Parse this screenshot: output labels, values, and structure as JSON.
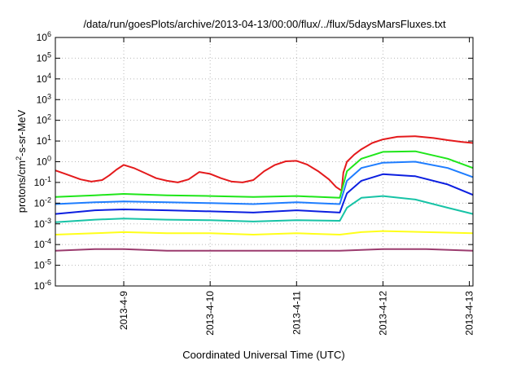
{
  "chart_data": {
    "type": "line",
    "title": "/data/run/goesPlots/archive/2013-04-13/00:00/flux/../flux/5daysMarsFluxes.txt",
    "xlabel": "Coordinated Universal Time (UTC)",
    "ylabel": {
      "prefix": "protons/cm",
      "sup": "2",
      "suffix": "-s-sr-MeV"
    },
    "yscale": "log",
    "ylim": [
      1e-06,
      1000000.0
    ],
    "xlim": [
      "2013-04-08T05:00",
      "2013-04-13T01:00"
    ],
    "grid": true,
    "y_ticks": [
      {
        "value": 1e-06,
        "base": "10",
        "exp": "-6"
      },
      {
        "value": 1e-05,
        "base": "10",
        "exp": "-5"
      },
      {
        "value": 0.0001,
        "base": "10",
        "exp": "-4"
      },
      {
        "value": 0.001,
        "base": "10",
        "exp": "-3"
      },
      {
        "value": 0.01,
        "base": "10",
        "exp": "-2"
      },
      {
        "value": 0.1,
        "base": "10",
        "exp": "-1"
      },
      {
        "value": 1.0,
        "base": "10",
        "exp": "0"
      },
      {
        "value": 10.0,
        "base": "10",
        "exp": "1"
      },
      {
        "value": 100.0,
        "base": "10",
        "exp": "2"
      },
      {
        "value": 1000.0,
        "base": "10",
        "exp": "3"
      },
      {
        "value": 10000.0,
        "base": "10",
        "exp": "4"
      },
      {
        "value": 100000.0,
        "base": "10",
        "exp": "5"
      },
      {
        "value": 1000000.0,
        "base": "10",
        "exp": "6"
      }
    ],
    "x_ticks": [
      {
        "value": "2013-04-09T00:00",
        "label": "2013-4-9"
      },
      {
        "value": "2013-04-10T00:00",
        "label": "2013-4-10"
      },
      {
        "value": "2013-04-11T00:00",
        "label": "2013-4-11"
      },
      {
        "value": "2013-04-12T00:00",
        "label": "2013-4-12"
      },
      {
        "value": "2013-04-13T00:00",
        "label": "2013-4-13"
      }
    ],
    "series": [
      {
        "color": "#e41a1c",
        "points": [
          [
            "2013-04-08T05:00",
            0.38
          ],
          [
            "2013-04-08T08:00",
            0.25
          ],
          [
            "2013-04-08T12:00",
            0.14
          ],
          [
            "2013-04-08T15:00",
            0.11
          ],
          [
            "2013-04-08T18:00",
            0.13
          ],
          [
            "2013-04-08T20:00",
            0.22
          ],
          [
            "2013-04-08T22:00",
            0.42
          ],
          [
            "2013-04-09T00:00",
            0.7
          ],
          [
            "2013-04-09T03:00",
            0.48
          ],
          [
            "2013-04-09T06:00",
            0.28
          ],
          [
            "2013-04-09T09:00",
            0.16
          ],
          [
            "2013-04-09T12:00",
            0.12
          ],
          [
            "2013-04-09T15:00",
            0.1
          ],
          [
            "2013-04-09T18:00",
            0.14
          ],
          [
            "2013-04-09T21:00",
            0.32
          ],
          [
            "2013-04-10T00:00",
            0.26
          ],
          [
            "2013-04-10T03:00",
            0.16
          ],
          [
            "2013-04-10T06:00",
            0.11
          ],
          [
            "2013-04-10T09:00",
            0.1
          ],
          [
            "2013-04-10T12:00",
            0.13
          ],
          [
            "2013-04-10T15:00",
            0.35
          ],
          [
            "2013-04-10T18:00",
            0.7
          ],
          [
            "2013-04-10T21:00",
            1.05
          ],
          [
            "2013-04-11T00:00",
            1.1
          ],
          [
            "2013-04-11T03:00",
            0.72
          ],
          [
            "2013-04-11T06:00",
            0.35
          ],
          [
            "2013-04-11T09:00",
            0.14
          ],
          [
            "2013-04-11T11:00",
            0.06
          ],
          [
            "2013-04-11T12:30",
            0.04
          ],
          [
            "2013-04-11T13:00",
            0.3
          ],
          [
            "2013-04-11T14:00",
            1.0
          ],
          [
            "2013-04-11T16:00",
            2.2
          ],
          [
            "2013-04-11T18:00",
            4.0
          ],
          [
            "2013-04-11T21:00",
            8.0
          ],
          [
            "2013-04-12T00:00",
            12.0
          ],
          [
            "2013-04-12T04:00",
            16.0
          ],
          [
            "2013-04-12T09:00",
            17.0
          ],
          [
            "2013-04-12T14:00",
            14.0
          ],
          [
            "2013-04-12T18:00",
            11.0
          ],
          [
            "2013-04-12T22:00",
            9.0
          ],
          [
            "2013-04-13T01:00",
            8.0
          ]
        ]
      },
      {
        "color": "#1fe61a",
        "points": [
          [
            "2013-04-08T05:00",
            0.02
          ],
          [
            "2013-04-08T16:00",
            0.024
          ],
          [
            "2013-04-09T00:00",
            0.028
          ],
          [
            "2013-04-09T12:00",
            0.024
          ],
          [
            "2013-04-10T00:00",
            0.022
          ],
          [
            "2013-04-10T12:00",
            0.02
          ],
          [
            "2013-04-11T00:00",
            0.022
          ],
          [
            "2013-04-11T12:00",
            0.018
          ],
          [
            "2013-04-11T14:00",
            0.35
          ],
          [
            "2013-04-11T18:00",
            1.4
          ],
          [
            "2013-04-12T00:00",
            3.0
          ],
          [
            "2013-04-12T09:00",
            3.2
          ],
          [
            "2013-04-12T18:00",
            1.4
          ],
          [
            "2013-04-13T01:00",
            0.5
          ]
        ]
      },
      {
        "color": "#1e7dff",
        "points": [
          [
            "2013-04-08T05:00",
            0.009
          ],
          [
            "2013-04-08T16:00",
            0.011
          ],
          [
            "2013-04-09T00:00",
            0.012
          ],
          [
            "2013-04-09T12:00",
            0.011
          ],
          [
            "2013-04-10T00:00",
            0.01
          ],
          [
            "2013-04-10T12:00",
            0.009
          ],
          [
            "2013-04-11T00:00",
            0.011
          ],
          [
            "2013-04-11T12:00",
            0.009
          ],
          [
            "2013-04-11T14:00",
            0.12
          ],
          [
            "2013-04-11T18:00",
            0.5
          ],
          [
            "2013-04-12T00:00",
            0.9
          ],
          [
            "2013-04-12T09:00",
            1.0
          ],
          [
            "2013-04-12T18:00",
            0.5
          ],
          [
            "2013-04-13T01:00",
            0.18
          ]
        ]
      },
      {
        "color": "#0c1fe0",
        "points": [
          [
            "2013-04-08T05:00",
            0.003
          ],
          [
            "2013-04-08T16:00",
            0.0045
          ],
          [
            "2013-04-09T00:00",
            0.005
          ],
          [
            "2013-04-09T12:00",
            0.0045
          ],
          [
            "2013-04-10T00:00",
            0.004
          ],
          [
            "2013-04-10T12:00",
            0.0035
          ],
          [
            "2013-04-11T00:00",
            0.0045
          ],
          [
            "2013-04-11T12:00",
            0.0035
          ],
          [
            "2013-04-11T14:00",
            0.03
          ],
          [
            "2013-04-11T18:00",
            0.12
          ],
          [
            "2013-04-12T00:00",
            0.25
          ],
          [
            "2013-04-12T09:00",
            0.2
          ],
          [
            "2013-04-12T18:00",
            0.08
          ],
          [
            "2013-04-13T01:00",
            0.025
          ]
        ]
      },
      {
        "color": "#17c3a6",
        "points": [
          [
            "2013-04-08T05:00",
            0.0012
          ],
          [
            "2013-04-08T16:00",
            0.0016
          ],
          [
            "2013-04-09T00:00",
            0.0018
          ],
          [
            "2013-04-09T12:00",
            0.0016
          ],
          [
            "2013-04-10T00:00",
            0.0015
          ],
          [
            "2013-04-10T12:00",
            0.0013
          ],
          [
            "2013-04-11T00:00",
            0.0015
          ],
          [
            "2013-04-11T12:00",
            0.0014
          ],
          [
            "2013-04-11T14:00",
            0.006
          ],
          [
            "2013-04-11T18:00",
            0.018
          ],
          [
            "2013-04-12T00:00",
            0.022
          ],
          [
            "2013-04-12T09:00",
            0.015
          ],
          [
            "2013-04-12T18:00",
            0.006
          ],
          [
            "2013-04-13T01:00",
            0.003
          ]
        ]
      },
      {
        "color": "#ffff1a",
        "points": [
          [
            "2013-04-08T05:00",
            0.0003
          ],
          [
            "2013-04-08T16:00",
            0.00035
          ],
          [
            "2013-04-09T00:00",
            0.0004
          ],
          [
            "2013-04-09T12:00",
            0.00035
          ],
          [
            "2013-04-10T00:00",
            0.00035
          ],
          [
            "2013-04-10T12:00",
            0.0003
          ],
          [
            "2013-04-11T00:00",
            0.00035
          ],
          [
            "2013-04-11T12:00",
            0.0003
          ],
          [
            "2013-04-11T18:00",
            0.0004
          ],
          [
            "2013-04-12T00:00",
            0.00045
          ],
          [
            "2013-04-12T12:00",
            0.0004
          ],
          [
            "2013-04-13T01:00",
            0.00035
          ]
        ]
      },
      {
        "color": "#9b3b6e",
        "points": [
          [
            "2013-04-08T05:00",
            5e-05
          ],
          [
            "2013-04-08T16:00",
            6e-05
          ],
          [
            "2013-04-09T00:00",
            6e-05
          ],
          [
            "2013-04-09T12:00",
            5e-05
          ],
          [
            "2013-04-10T00:00",
            5e-05
          ],
          [
            "2013-04-10T12:00",
            5e-05
          ],
          [
            "2013-04-11T00:00",
            5e-05
          ],
          [
            "2013-04-11T12:00",
            5e-05
          ],
          [
            "2013-04-12T00:00",
            6e-05
          ],
          [
            "2013-04-12T12:00",
            6e-05
          ],
          [
            "2013-04-13T01:00",
            5e-05
          ]
        ]
      }
    ]
  }
}
